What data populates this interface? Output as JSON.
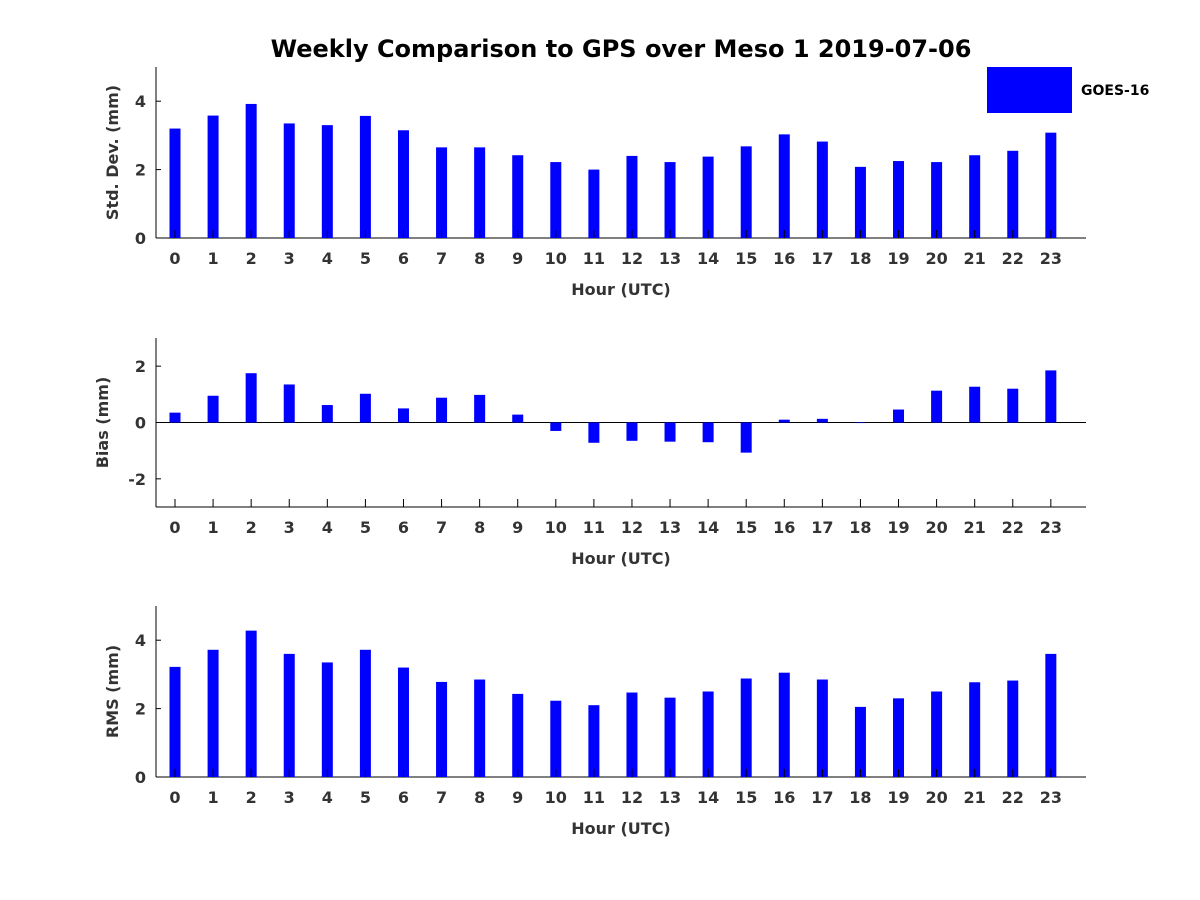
{
  "title": "Weekly Comparison to GPS over Meso 1 2019-07-06",
  "legend": {
    "label": "GOES-16",
    "color": "#0000ff"
  },
  "chart_data": [
    {
      "type": "bar",
      "ylabel": "Std. Dev. (mm)",
      "xlabel": "Hour (UTC)",
      "categories": [
        "0",
        "1",
        "2",
        "3",
        "4",
        "5",
        "6",
        "7",
        "8",
        "9",
        "10",
        "11",
        "12",
        "13",
        "14",
        "15",
        "16",
        "17",
        "18",
        "19",
        "20",
        "21",
        "22",
        "23"
      ],
      "ylim": [
        0,
        5
      ],
      "yticks": [
        0,
        2,
        4
      ],
      "series": [
        {
          "name": "GOES-16",
          "values": [
            3.2,
            3.58,
            3.92,
            3.35,
            3.3,
            3.57,
            3.15,
            2.65,
            2.65,
            2.42,
            2.22,
            2.0,
            2.4,
            2.22,
            2.38,
            2.68,
            3.03,
            2.82,
            2.08,
            2.25,
            2.22,
            2.42,
            2.55,
            3.08
          ]
        }
      ]
    },
    {
      "type": "bar",
      "ylabel": "Bias (mm)",
      "xlabel": "Hour (UTC)",
      "categories": [
        "0",
        "1",
        "2",
        "3",
        "4",
        "5",
        "6",
        "7",
        "8",
        "9",
        "10",
        "11",
        "12",
        "13",
        "14",
        "15",
        "16",
        "17",
        "18",
        "19",
        "20",
        "21",
        "22",
        "23"
      ],
      "ylim": [
        -3,
        3
      ],
      "yticks": [
        -2,
        0,
        2
      ],
      "series": [
        {
          "name": "GOES-16",
          "values": [
            0.35,
            0.95,
            1.75,
            1.35,
            0.62,
            1.02,
            0.5,
            0.88,
            0.98,
            0.28,
            -0.3,
            -0.72,
            -0.65,
            -0.68,
            -0.7,
            -1.07,
            0.1,
            0.13,
            -0.02,
            0.46,
            1.13,
            1.27,
            1.2,
            1.85
          ]
        }
      ]
    },
    {
      "type": "bar",
      "ylabel": "RMS (mm)",
      "xlabel": "Hour (UTC)",
      "categories": [
        "0",
        "1",
        "2",
        "3",
        "4",
        "5",
        "6",
        "7",
        "8",
        "9",
        "10",
        "11",
        "12",
        "13",
        "14",
        "15",
        "16",
        "17",
        "18",
        "19",
        "20",
        "21",
        "22",
        "23"
      ],
      "ylim": [
        0,
        5
      ],
      "yticks": [
        0,
        2,
        4
      ],
      "series": [
        {
          "name": "GOES-16",
          "values": [
            3.22,
            3.72,
            4.28,
            3.6,
            3.35,
            3.72,
            3.2,
            2.78,
            2.85,
            2.43,
            2.23,
            2.1,
            2.47,
            2.32,
            2.5,
            2.88,
            3.05,
            2.85,
            2.05,
            2.3,
            2.5,
            2.77,
            2.82,
            3.6
          ]
        }
      ]
    }
  ]
}
